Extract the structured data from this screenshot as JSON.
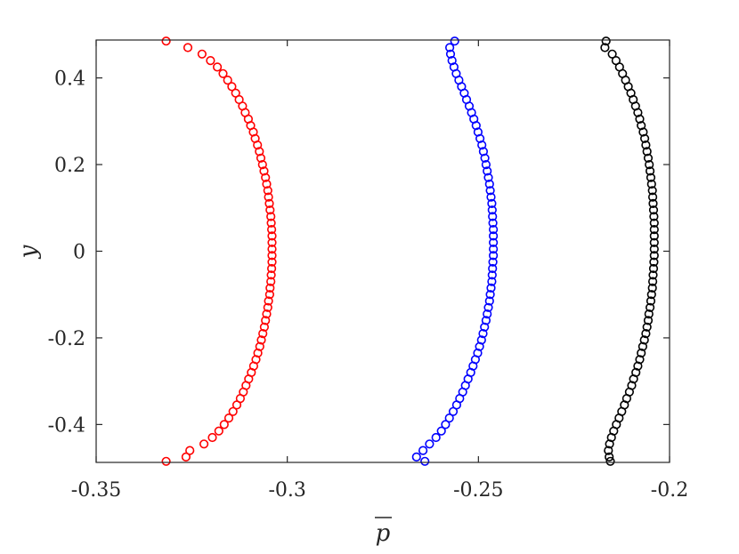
{
  "chart_data": {
    "type": "scatter",
    "xlabel": "p",
    "xlabel_overline": true,
    "ylabel": "y",
    "xlim": [
      -0.35,
      -0.2
    ],
    "ylim": [
      -0.4875,
      0.4875
    ],
    "x_ticks": [
      -0.35,
      -0.3,
      -0.25,
      -0.2
    ],
    "x_tick_labels": [
      "-0.35",
      "-0.3",
      "-0.25",
      "-0.2"
    ],
    "y_ticks": [
      0.4,
      0.2,
      0,
      -0.2,
      -0.4
    ],
    "y_tick_labels": [
      "0.4",
      "0.2",
      "0",
      "-0.2",
      "-0.4"
    ],
    "grid": false,
    "marker": "open-circle",
    "series": [
      {
        "color": "#ff0000",
        "y": [
          0.485,
          0.47,
          0.455,
          0.44,
          0.425,
          0.41,
          0.395,
          0.38,
          0.365,
          0.35,
          0.335,
          0.32,
          0.305,
          0.29,
          0.275,
          0.26,
          0.245,
          0.23,
          0.215,
          0.2,
          0.185,
          0.17,
          0.155,
          0.14,
          0.125,
          0.11,
          0.095,
          0.08,
          0.065,
          0.05,
          0.035,
          0.02,
          0.005,
          -0.01,
          -0.025,
          -0.04,
          -0.055,
          -0.07,
          -0.085,
          -0.1,
          -0.115,
          -0.13,
          -0.145,
          -0.16,
          -0.175,
          -0.19,
          -0.205,
          -0.22,
          -0.235,
          -0.25,
          -0.265,
          -0.28,
          -0.295,
          -0.31,
          -0.325,
          -0.34,
          -0.355,
          -0.37,
          -0.385,
          -0.4,
          -0.415,
          -0.43,
          -0.445,
          -0.46,
          -0.475,
          -0.485
        ],
        "x": [
          -0.3317,
          -0.326,
          -0.3223,
          -0.3201,
          -0.3183,
          -0.3168,
          -0.3156,
          -0.3145,
          -0.3135,
          -0.3126,
          -0.3117,
          -0.311,
          -0.3102,
          -0.3096,
          -0.3089,
          -0.3084,
          -0.3078,
          -0.3073,
          -0.3069,
          -0.3065,
          -0.3061,
          -0.3057,
          -0.3054,
          -0.3051,
          -0.3049,
          -0.3047,
          -0.3045,
          -0.3043,
          -0.3042,
          -0.3041,
          -0.304,
          -0.304,
          -0.304,
          -0.304,
          -0.304,
          -0.3041,
          -0.3042,
          -0.3043,
          -0.3045,
          -0.3046,
          -0.3049,
          -0.3051,
          -0.3054,
          -0.3057,
          -0.306,
          -0.3064,
          -0.3068,
          -0.3072,
          -0.3077,
          -0.3082,
          -0.3088,
          -0.3094,
          -0.3101,
          -0.3108,
          -0.3115,
          -0.3123,
          -0.3132,
          -0.3142,
          -0.3153,
          -0.3165,
          -0.3179,
          -0.3196,
          -0.3218,
          -0.3255,
          -0.3265,
          -0.3317
        ]
      },
      {
        "color": "#0000ff",
        "y": [
          0.485,
          0.47,
          0.455,
          0.44,
          0.425,
          0.41,
          0.395,
          0.38,
          0.365,
          0.35,
          0.335,
          0.32,
          0.305,
          0.29,
          0.275,
          0.26,
          0.245,
          0.23,
          0.215,
          0.2,
          0.185,
          0.17,
          0.155,
          0.14,
          0.125,
          0.11,
          0.095,
          0.08,
          0.065,
          0.05,
          0.035,
          0.02,
          0.005,
          -0.01,
          -0.025,
          -0.04,
          -0.055,
          -0.07,
          -0.085,
          -0.1,
          -0.115,
          -0.13,
          -0.145,
          -0.16,
          -0.175,
          -0.19,
          -0.205,
          -0.22,
          -0.235,
          -0.25,
          -0.265,
          -0.28,
          -0.295,
          -0.31,
          -0.325,
          -0.34,
          -0.355,
          -0.37,
          -0.385,
          -0.4,
          -0.415,
          -0.43,
          -0.445,
          -0.46,
          -0.475,
          -0.485
        ],
        "x": [
          -0.2562,
          -0.2575,
          -0.2573,
          -0.2569,
          -0.2564,
          -0.2558,
          -0.2551,
          -0.2544,
          -0.2537,
          -0.2531,
          -0.2524,
          -0.2518,
          -0.2512,
          -0.2506,
          -0.2501,
          -0.2496,
          -0.2491,
          -0.2487,
          -0.2483,
          -0.248,
          -0.2477,
          -0.2474,
          -0.2471,
          -0.2469,
          -0.2467,
          -0.2465,
          -0.2464,
          -0.2463,
          -0.2462,
          -0.2461,
          -0.2461,
          -0.2461,
          -0.2461,
          -0.2461,
          -0.2462,
          -0.2463,
          -0.2464,
          -0.2465,
          -0.2467,
          -0.2469,
          -0.2471,
          -0.2474,
          -0.2477,
          -0.248,
          -0.2484,
          -0.2488,
          -0.2492,
          -0.2497,
          -0.2502,
          -0.2508,
          -0.2514,
          -0.252,
          -0.2527,
          -0.2534,
          -0.2541,
          -0.2549,
          -0.2557,
          -0.2566,
          -0.2576,
          -0.2586,
          -0.2597,
          -0.2611,
          -0.2628,
          -0.2645,
          -0.2662,
          -0.264
        ]
      },
      {
        "color": "#000000",
        "y": [
          0.485,
          0.47,
          0.455,
          0.44,
          0.425,
          0.41,
          0.395,
          0.38,
          0.365,
          0.35,
          0.335,
          0.32,
          0.305,
          0.29,
          0.275,
          0.26,
          0.245,
          0.23,
          0.215,
          0.2,
          0.185,
          0.17,
          0.155,
          0.14,
          0.125,
          0.11,
          0.095,
          0.08,
          0.065,
          0.05,
          0.035,
          0.02,
          0.005,
          -0.01,
          -0.025,
          -0.04,
          -0.055,
          -0.07,
          -0.085,
          -0.1,
          -0.115,
          -0.13,
          -0.145,
          -0.16,
          -0.175,
          -0.19,
          -0.205,
          -0.22,
          -0.235,
          -0.25,
          -0.265,
          -0.28,
          -0.295,
          -0.31,
          -0.325,
          -0.34,
          -0.355,
          -0.37,
          -0.385,
          -0.4,
          -0.415,
          -0.43,
          -0.445,
          -0.46,
          -0.475,
          -0.485
        ],
        "x": [
          -0.2166,
          -0.2169,
          -0.215,
          -0.214,
          -0.2131,
          -0.2123,
          -0.2115,
          -0.2108,
          -0.2101,
          -0.2095,
          -0.2089,
          -0.2083,
          -0.2078,
          -0.2074,
          -0.2069,
          -0.2065,
          -0.2062,
          -0.2059,
          -0.2056,
          -0.2053,
          -0.2051,
          -0.2049,
          -0.2047,
          -0.2045,
          -0.2044,
          -0.2043,
          -0.2042,
          -0.2041,
          -0.204,
          -0.204,
          -0.204,
          -0.204,
          -0.204,
          -0.204,
          -0.2041,
          -0.2042,
          -0.2043,
          -0.2044,
          -0.2045,
          -0.2047,
          -0.2049,
          -0.2051,
          -0.2054,
          -0.2056,
          -0.2059,
          -0.2062,
          -0.2066,
          -0.207,
          -0.2074,
          -0.2078,
          -0.2083,
          -0.2088,
          -0.2094,
          -0.2099,
          -0.2105,
          -0.2112,
          -0.2118,
          -0.2125,
          -0.2132,
          -0.2139,
          -0.2146,
          -0.2152,
          -0.2157,
          -0.216,
          -0.2158,
          -0.2155
        ]
      }
    ]
  }
}
